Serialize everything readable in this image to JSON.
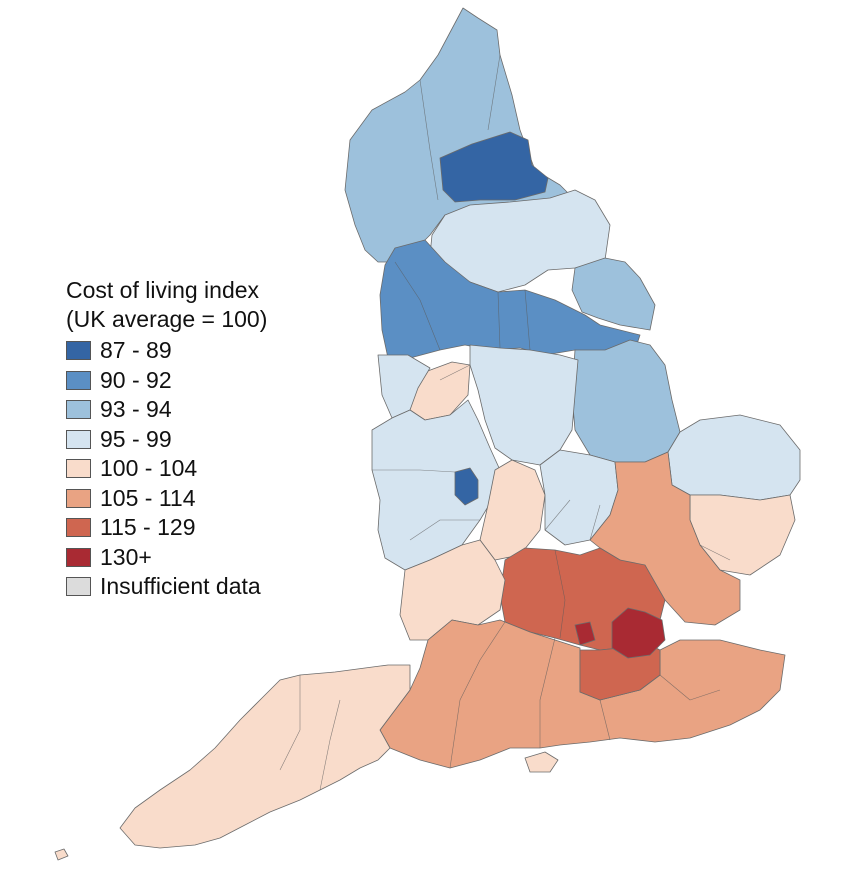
{
  "legend": {
    "title_line1": "Cost of living index",
    "title_line2": "(UK average = 100)",
    "items": [
      {
        "label": "87 - 89",
        "color": "#3465a4"
      },
      {
        "label": "90 - 92",
        "color": "#5b8fc4"
      },
      {
        "label": "93 - 94",
        "color": "#9dc1dc"
      },
      {
        "label": "95 - 99",
        "color": "#d5e4f0"
      },
      {
        "label": "100 - 104",
        "color": "#f9dccb"
      },
      {
        "label": "105 - 114",
        "color": "#e9a383"
      },
      {
        "label": "115 - 129",
        "color": "#cf6650"
      },
      {
        "label": "130+",
        "color": "#a92a33"
      },
      {
        "label": "Insufficient data",
        "color": "#dcdcdc"
      }
    ]
  }
}
